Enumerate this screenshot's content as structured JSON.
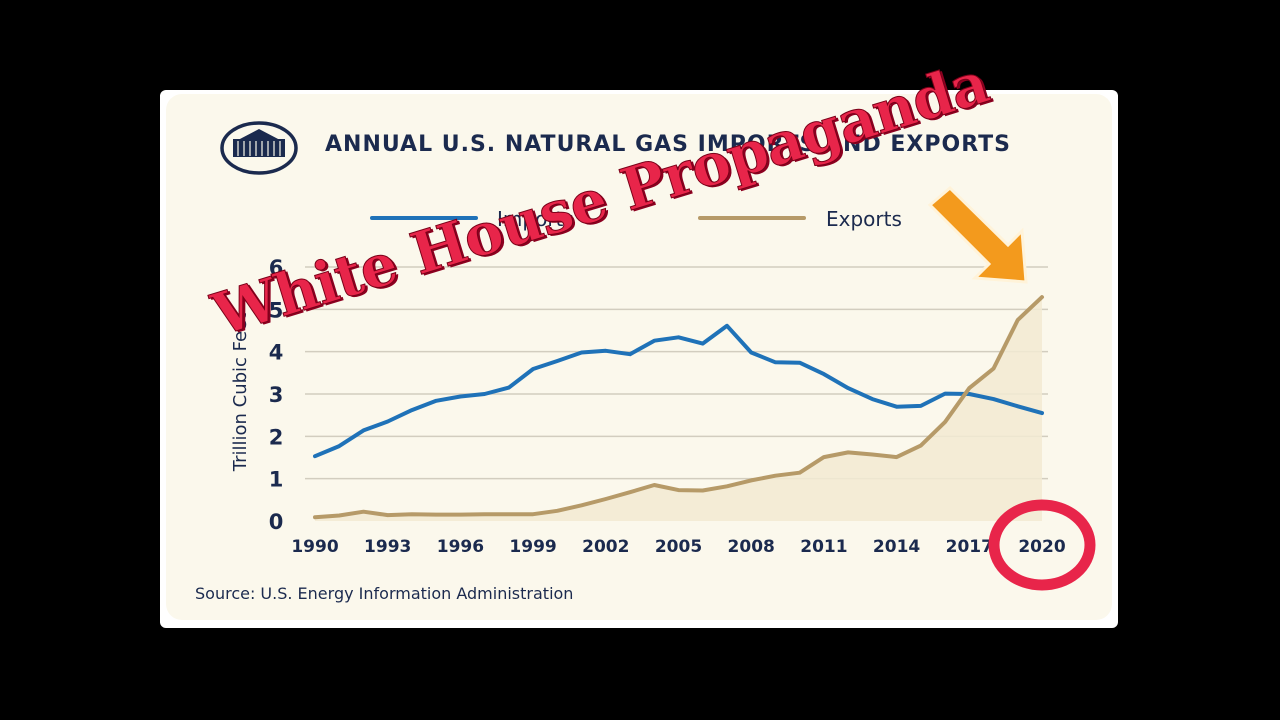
{
  "colors": {
    "imports": "#1f72b8",
    "exports": "#b69a68",
    "navy": "#1b2a4e",
    "stamp": "#e8254a",
    "arrow": "#f39a1d"
  },
  "seal": {
    "icon": "white-house-seal-icon"
  },
  "overlay": {
    "stamp_text": "White House Propaganda",
    "arrow_icon": "orange-arrow-icon",
    "circle_icon": "red-circle-icon"
  },
  "source": "Source: U.S. Energy Information Administration",
  "chart_data": {
    "type": "line",
    "title": "ANNUAL U.S. NATURAL GAS IMPORTS AND EXPORTS",
    "ylabel": "Trillion Cubic Feet",
    "xlabel": "",
    "ylim": [
      0,
      6
    ],
    "yticks": [
      "0",
      "1",
      "2",
      "3",
      "4",
      "5",
      "6"
    ],
    "xticks": [
      "1990",
      "1993",
      "1996",
      "1999",
      "2002",
      "2005",
      "2008",
      "2011",
      "2014",
      "2017",
      "2020"
    ],
    "legend": "top",
    "grid": "horizontal",
    "x": [
      1990,
      1991,
      1992,
      1993,
      1994,
      1995,
      1996,
      1997,
      1998,
      1999,
      2000,
      2001,
      2002,
      2003,
      2004,
      2005,
      2006,
      2007,
      2008,
      2009,
      2010,
      2011,
      2012,
      2013,
      2014,
      2015,
      2016,
      2017,
      2018,
      2019,
      2020
    ],
    "series": [
      {
        "name": "Imports",
        "values": [
          1.53,
          1.77,
          2.14,
          2.35,
          2.62,
          2.84,
          2.94,
          3.0,
          3.15,
          3.59,
          3.78,
          3.98,
          4.02,
          3.94,
          4.26,
          4.34,
          4.19,
          4.61,
          3.98,
          3.75,
          3.74,
          3.47,
          3.14,
          2.88,
          2.7,
          2.72,
          3.01,
          3.0,
          2.88,
          2.71,
          2.55
        ]
      },
      {
        "name": "Exports",
        "values": [
          0.09,
          0.13,
          0.22,
          0.14,
          0.16,
          0.15,
          0.15,
          0.16,
          0.16,
          0.16,
          0.24,
          0.37,
          0.52,
          0.68,
          0.85,
          0.73,
          0.72,
          0.82,
          0.96,
          1.07,
          1.14,
          1.51,
          1.62,
          1.57,
          1.51,
          1.78,
          2.34,
          3.14,
          3.6,
          4.75,
          5.29
        ]
      }
    ]
  }
}
